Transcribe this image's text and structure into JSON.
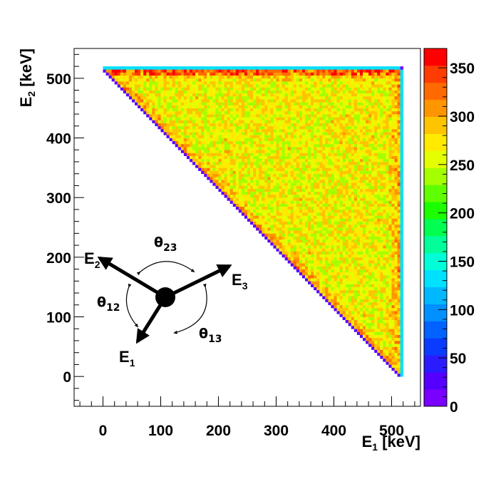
{
  "chart_data": {
    "type": "heatmap",
    "title": "",
    "xlabel": {
      "main": "E",
      "sub": "1",
      "unit": " [keV]"
    },
    "ylabel": {
      "main": "E",
      "sub": "2",
      "unit": " [keV]"
    },
    "xlim": [
      -50,
      550
    ],
    "ylim": [
      -50,
      550
    ],
    "x_ticks": [
      "0",
      "100",
      "200",
      "300",
      "400",
      "500"
    ],
    "y_ticks": [
      "0",
      "100",
      "200",
      "300",
      "400",
      "500"
    ],
    "bin_width_keV": 5,
    "domain": "E1 + E2 >= 511 keV, E1 <= 511 keV, E2 <= 511 keV",
    "z_range": [
      0,
      370
    ],
    "colorbar_ticks": [
      "0",
      "50",
      "100",
      "150",
      "200",
      "250",
      "300",
      "350"
    ],
    "typical_counts": {
      "interior": 265,
      "near_edges": 300,
      "top_edge_max": 350,
      "outer_boundary_rows": 130,
      "diagonal_boundary": 30
    },
    "grid": false,
    "legend": "colorbar-right",
    "inset": {
      "vectors": [
        "E",
        "E",
        "E"
      ],
      "vector_subs": [
        "1",
        "2",
        "3"
      ],
      "angles": [
        "θ",
        "θ",
        "θ"
      ],
      "angle_subs": [
        "12",
        "23",
        "13"
      ]
    }
  }
}
